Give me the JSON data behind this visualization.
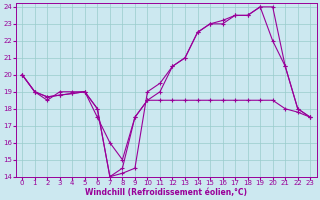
{
  "background_color": "#cce8f0",
  "line_color": "#990099",
  "grid_color": "#99cccc",
  "xlabel": "Windchill (Refroidissement éolien,°C)",
  "ylim": [
    14,
    24.2
  ],
  "xlim": [
    -0.5,
    23.5
  ],
  "yticks": [
    14,
    15,
    16,
    17,
    18,
    19,
    20,
    21,
    22,
    23,
    24
  ],
  "xticks": [
    0,
    1,
    2,
    3,
    4,
    5,
    6,
    7,
    8,
    9,
    10,
    11,
    12,
    13,
    14,
    15,
    16,
    17,
    18,
    19,
    20,
    21,
    22,
    23
  ],
  "line1_x": [
    0,
    1,
    2,
    3,
    4,
    5,
    6,
    7,
    8,
    9,
    10,
    11,
    12,
    13,
    14,
    15,
    16,
    17,
    18,
    19,
    20,
    21,
    22,
    23
  ],
  "line1_y": [
    20.0,
    19.0,
    18.5,
    19.0,
    19.0,
    19.0,
    17.5,
    16.0,
    15.0,
    17.5,
    18.5,
    18.5,
    18.5,
    18.5,
    18.5,
    18.5,
    18.5,
    18.5,
    18.5,
    18.5,
    18.5,
    18.0,
    17.8,
    17.5
  ],
  "line2_x": [
    0,
    1,
    2,
    3,
    4,
    5,
    6,
    7,
    8,
    9,
    10,
    11,
    12,
    13,
    14,
    15,
    16,
    17,
    18,
    19,
    20,
    21,
    22,
    23
  ],
  "line2_y": [
    20.0,
    19.0,
    18.7,
    18.8,
    18.9,
    19.0,
    18.0,
    14.0,
    14.2,
    14.5,
    19.0,
    19.5,
    20.5,
    21.0,
    22.5,
    23.0,
    23.0,
    23.5,
    23.5,
    24.0,
    22.0,
    20.5,
    18.0,
    17.5
  ],
  "line3_x": [
    0,
    1,
    2,
    3,
    4,
    5,
    6,
    7,
    8,
    9,
    10,
    11,
    12,
    13,
    14,
    15,
    16,
    17,
    18,
    19,
    20,
    21,
    22,
    23
  ],
  "line3_y": [
    20.0,
    19.0,
    18.7,
    18.8,
    18.9,
    19.0,
    18.0,
    14.0,
    14.5,
    17.5,
    18.5,
    19.0,
    20.5,
    21.0,
    22.5,
    23.0,
    23.2,
    23.5,
    23.5,
    24.0,
    24.0,
    20.5,
    18.0,
    17.5
  ]
}
